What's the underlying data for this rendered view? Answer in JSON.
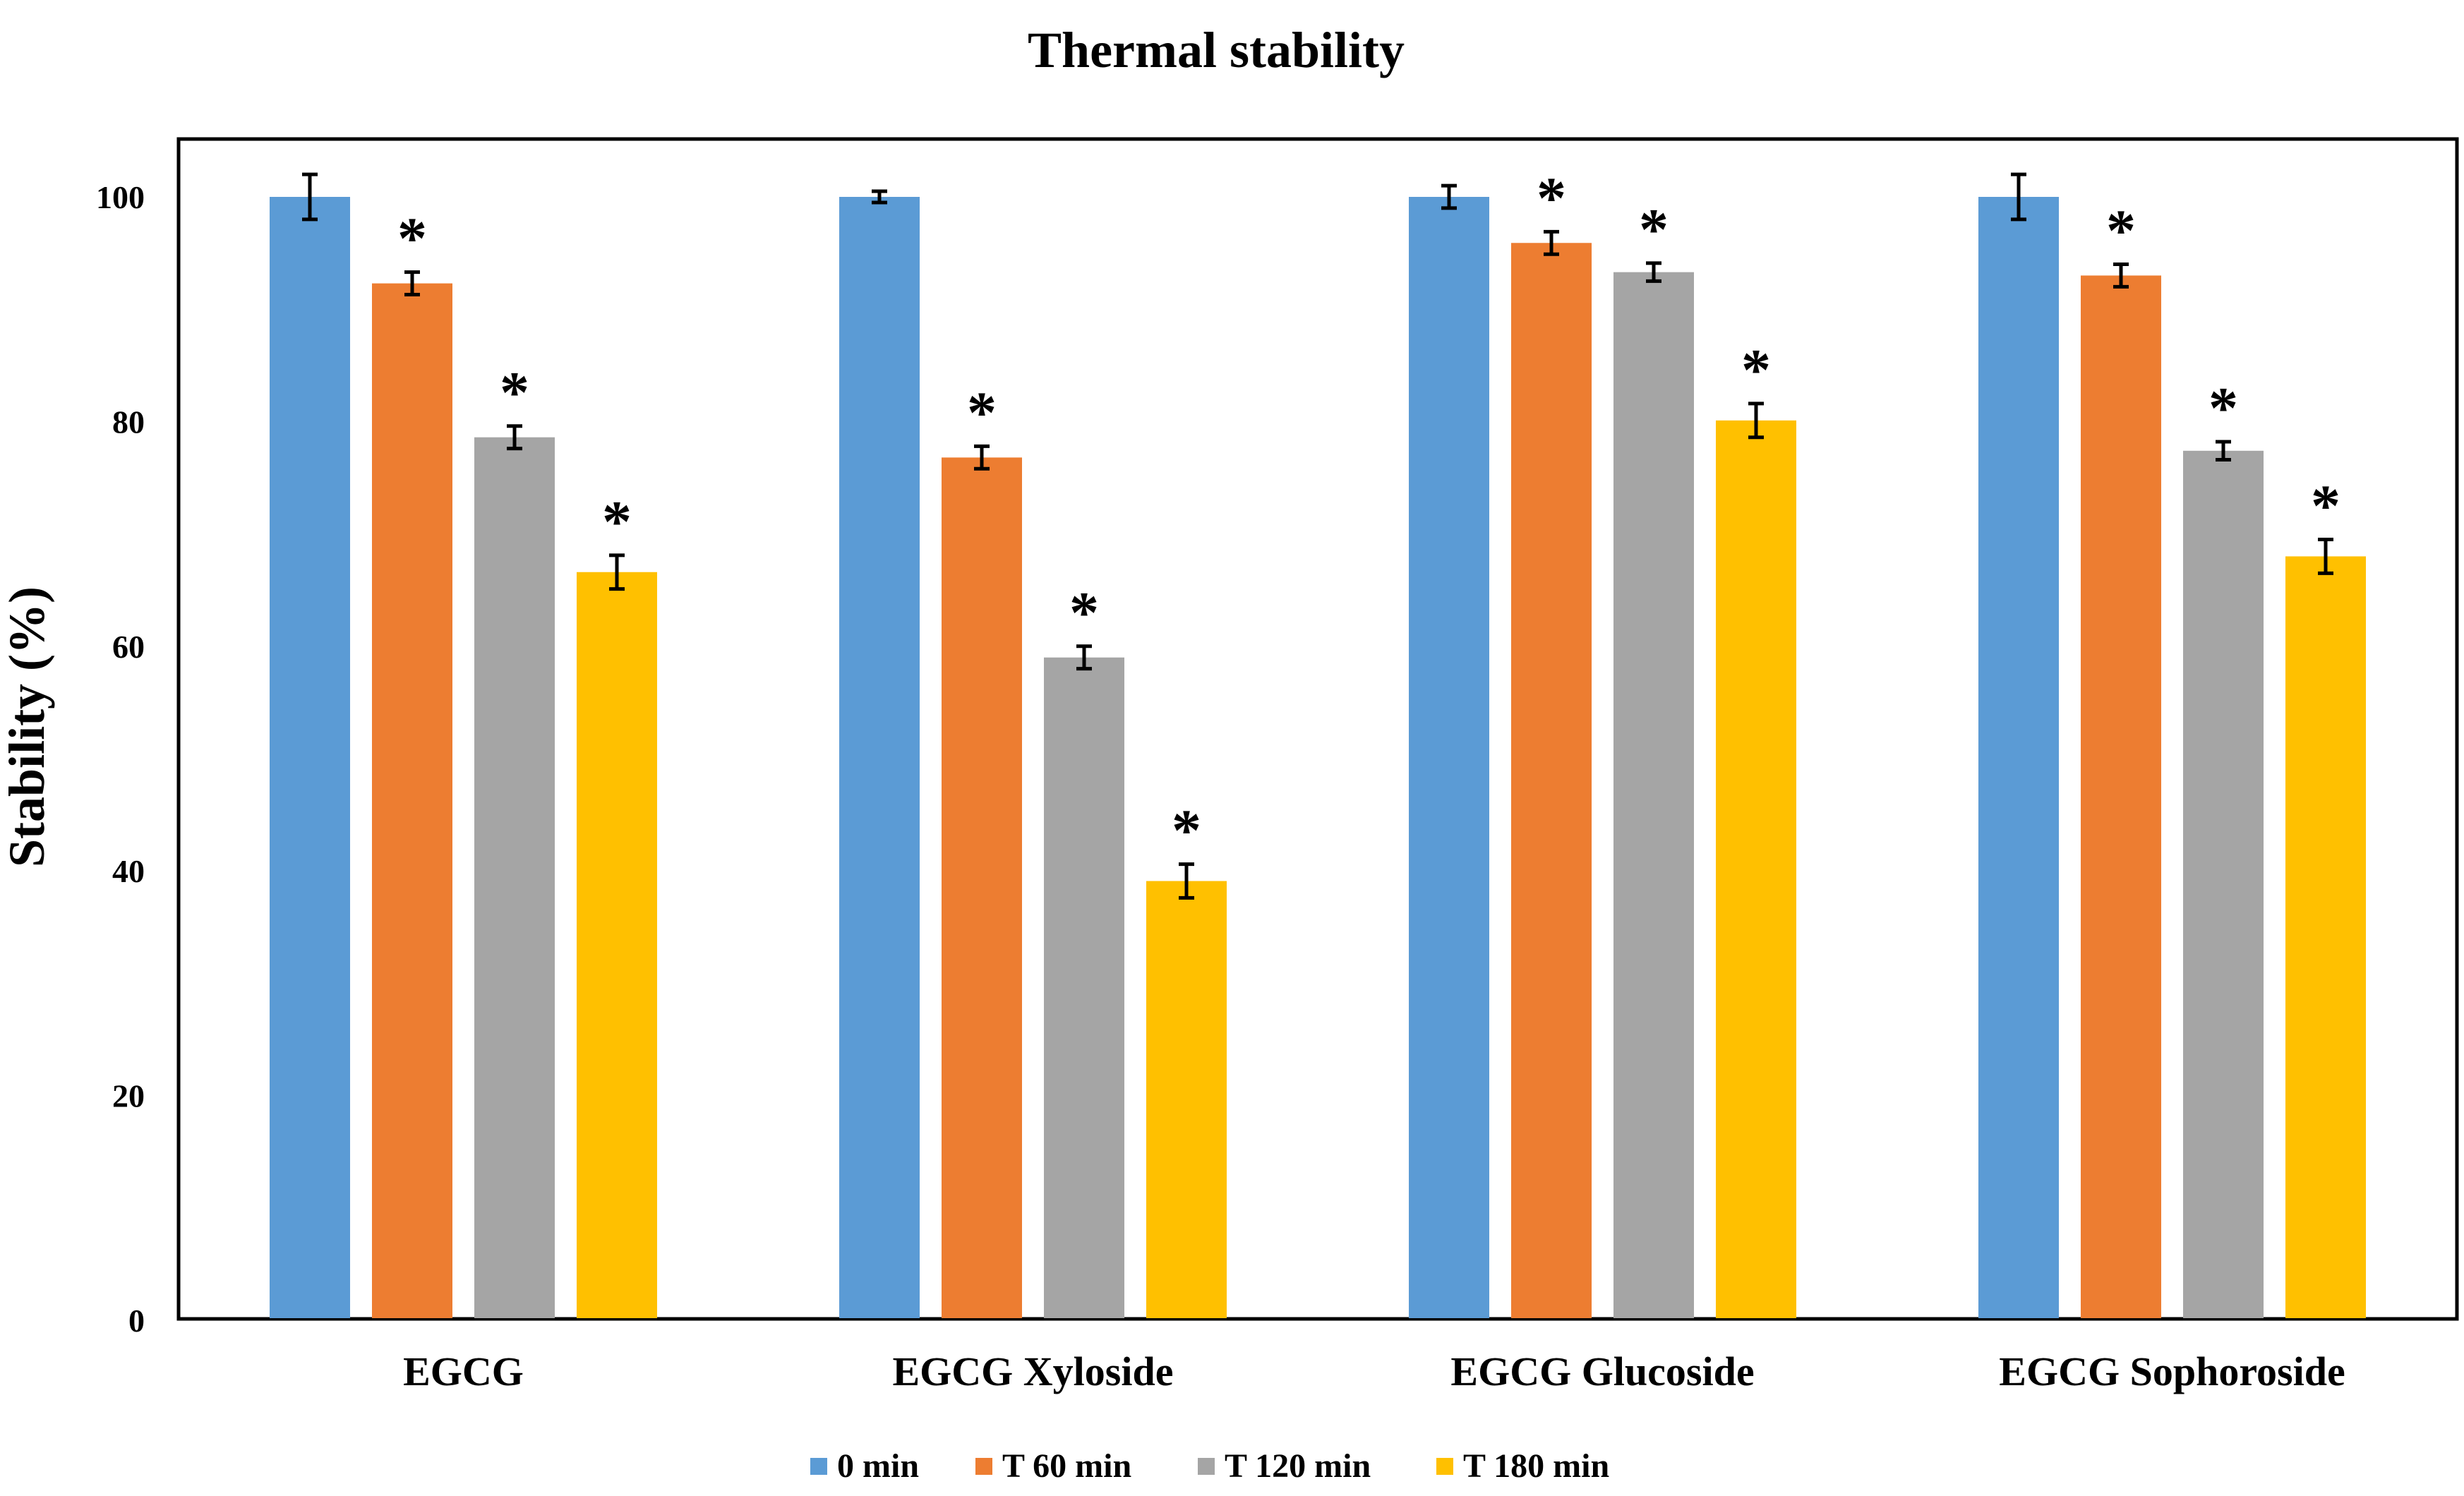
{
  "chart_data": {
    "type": "bar",
    "title": "Thermal stability",
    "xlabel": "",
    "ylabel": "Stability (%)",
    "ylim": [
      0,
      105
    ],
    "yticks": [
      0,
      20,
      40,
      60,
      80,
      100
    ],
    "grid": false,
    "legend_position": "bottom",
    "categories": [
      "EGCG",
      "EGCG Xyloside",
      "EGCG Glucoside",
      "EGCG Sophoroside"
    ],
    "series": [
      {
        "name": "0 min",
        "color": "#5B9BD5",
        "values": [
          100,
          100,
          100,
          100
        ],
        "errors": [
          2,
          0.5,
          1,
          2
        ],
        "significant": [
          false,
          false,
          false,
          false
        ]
      },
      {
        "name": "T 60 min",
        "color": "#ED7D31",
        "values": [
          92.3,
          76.8,
          95.9,
          93
        ],
        "errors": [
          1,
          1,
          1,
          1
        ],
        "significant": [
          true,
          true,
          true,
          true
        ]
      },
      {
        "name": "T 120 min",
        "color": "#A5A5A5",
        "values": [
          78.6,
          59,
          93.3,
          77.4
        ],
        "errors": [
          1,
          1,
          0.8,
          0.8
        ],
        "significant": [
          true,
          true,
          true,
          true
        ]
      },
      {
        "name": "T 180 min",
        "color": "#FFC000",
        "values": [
          66.6,
          39.1,
          80.1,
          68
        ],
        "errors": [
          1.5,
          1.5,
          1.5,
          1.5
        ],
        "significant": [
          true,
          true,
          true,
          true
        ]
      }
    ],
    "significance_marker": "*"
  }
}
